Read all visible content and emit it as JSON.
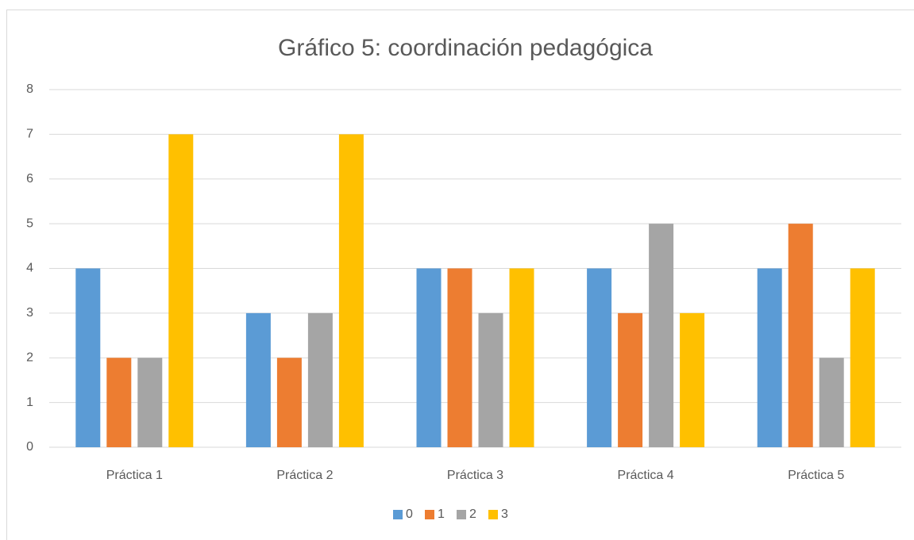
{
  "chart_data": {
    "type": "bar",
    "title": "Gráfico 5: coordinación pedagógica",
    "categories": [
      "Práctica 1",
      "Práctica 2",
      "Práctica 3",
      "Práctica 4",
      "Práctica 5"
    ],
    "series": [
      {
        "name": "0",
        "color": "#5b9bd5",
        "values": [
          4,
          3,
          4,
          4,
          4
        ]
      },
      {
        "name": "1",
        "color": "#ed7d31",
        "values": [
          2,
          2,
          4,
          3,
          5
        ]
      },
      {
        "name": "2",
        "color": "#a5a5a5",
        "values": [
          2,
          3,
          3,
          5,
          2
        ]
      },
      {
        "name": "3",
        "color": "#ffc000",
        "values": [
          7,
          7,
          4,
          3,
          4
        ]
      }
    ],
    "ylim": [
      0,
      8
    ],
    "yticks": [
      0,
      1,
      2,
      3,
      4,
      5,
      6,
      7,
      8
    ],
    "grid": true,
    "legend": "bottom"
  }
}
